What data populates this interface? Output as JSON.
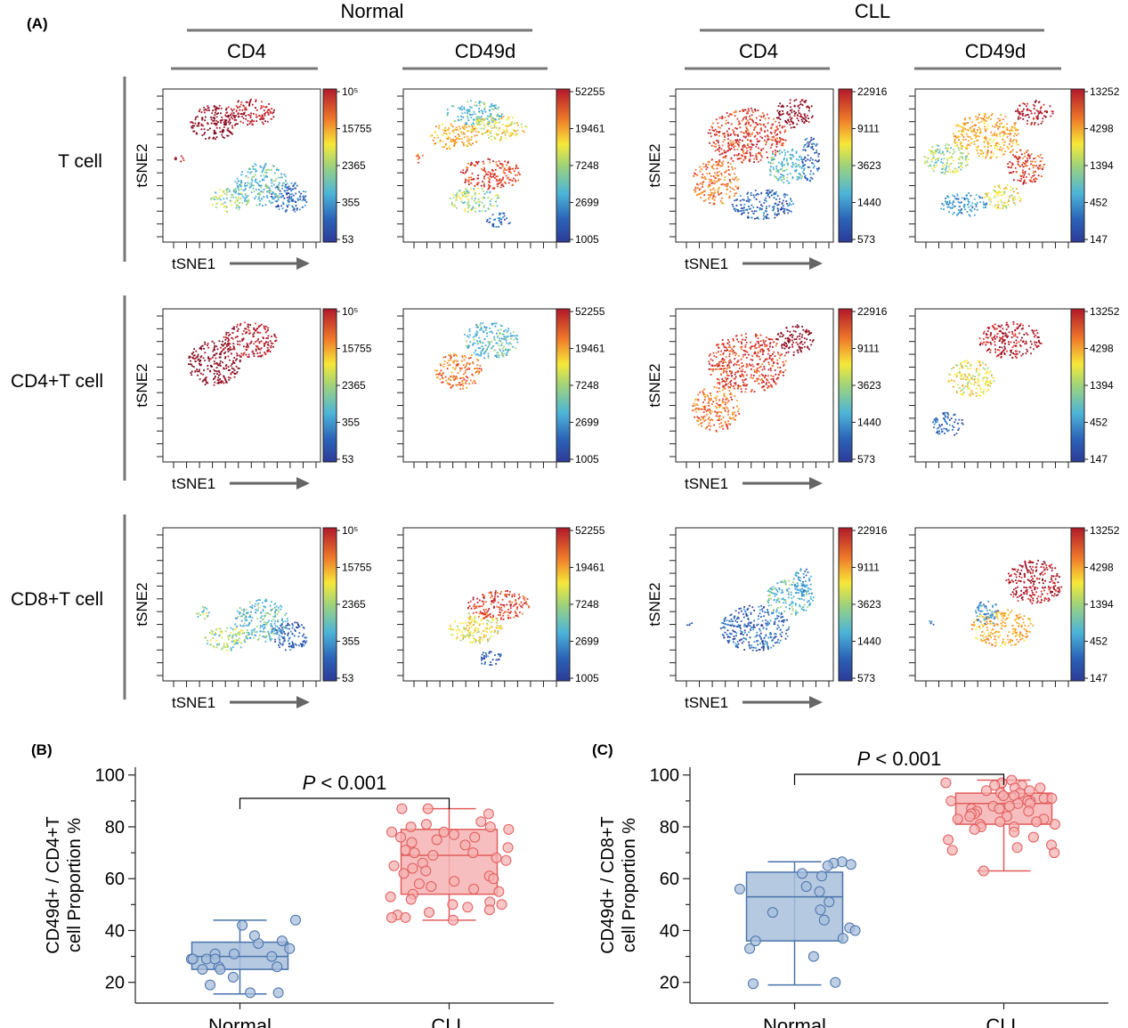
{
  "panel_labels": {
    "a": "(A)",
    "b": "(B)",
    "c": "(C)"
  },
  "groups": {
    "normal": "Normal",
    "cll": "CLL"
  },
  "markers": {
    "cd4": "CD4",
    "cd49d": "CD49d"
  },
  "rows": [
    "T cell",
    "CD4+T cell",
    "CD8+T cell"
  ],
  "axis": {
    "tsne1": "tSNE1",
    "tsne2": "tSNE2"
  },
  "colorbars": {
    "normal_cd4": {
      "ticks": [
        "10⁵",
        "15755",
        "2365",
        "355",
        "53"
      ]
    },
    "normal_cd49d": {
      "ticks": [
        "52255",
        "19461",
        "7248",
        "2699",
        "1005"
      ]
    },
    "cll_cd4": {
      "ticks": [
        "22916",
        "9111",
        "3623",
        "1440",
        "573"
      ]
    },
    "cll_cd49d": {
      "ticks": [
        "13252",
        "4298",
        "1394",
        "452",
        "147"
      ]
    }
  },
  "colors": {
    "normal_fill": "#a8bfdc",
    "normal_stroke": "#4a73aa",
    "cll_fill": "#f5b3b3",
    "cll_stroke": "#e25c5c",
    "bracket": "#000000"
  },
  "chart_data": [
    {
      "type": "box",
      "panel": "B",
      "categories": [
        "Normal",
        "CLL"
      ],
      "ylabel_line1": "CD49d+ / CD4+T",
      "ylabel_line2": "cell Proportion %",
      "ylim": [
        12,
        103
      ],
      "yticks": [
        20,
        40,
        60,
        80,
        100
      ],
      "significance": {
        "prefix": "P",
        "text": " < 0.001"
      },
      "series": [
        {
          "name": "Normal",
          "box": {
            "q1": 25,
            "median": 30,
            "q3": 35.5,
            "min": 15.5,
            "max": 44
          },
          "points": [
            35,
            33,
            31,
            29,
            29,
            30,
            25,
            26,
            26,
            25,
            38,
            36,
            44,
            42,
            29,
            31,
            22,
            16,
            19,
            16,
            29
          ]
        },
        {
          "name": "CLL",
          "box": {
            "q1": 54,
            "median": 69,
            "q3": 79,
            "min": 44,
            "max": 87
          },
          "points": [
            87,
            87,
            85,
            82,
            81,
            80,
            80,
            79,
            78,
            78,
            77,
            76,
            76,
            75,
            74,
            73,
            72,
            71,
            70,
            70,
            69,
            68,
            67,
            66,
            65,
            64,
            63,
            62,
            61,
            60,
            59,
            58,
            57,
            56,
            55,
            54,
            53,
            52,
            51,
            50,
            50,
            49,
            48,
            47,
            46,
            45,
            45,
            44
          ]
        }
      ]
    },
    {
      "type": "box",
      "panel": "C",
      "categories": [
        "Normal",
        "CLL"
      ],
      "ylabel_line1": "CD49d+ / CD8+T",
      "ylabel_line2": "cell Proportion %",
      "ylim": [
        12,
        103
      ],
      "yticks": [
        20,
        40,
        60,
        80,
        100
      ],
      "significance": {
        "prefix": "P",
        "text": " < 0.001"
      },
      "series": [
        {
          "name": "Normal",
          "box": {
            "q1": 36,
            "median": 53,
            "q3": 62.5,
            "min": 19,
            "max": 66.5
          },
          "points": [
            66.5,
            66,
            65.5,
            65,
            62,
            61,
            57,
            56,
            55,
            51,
            48,
            47,
            44,
            41,
            40,
            37,
            36,
            33,
            30,
            20,
            19.5
          ]
        },
        {
          "name": "CLL",
          "box": {
            "q1": 81,
            "median": 89,
            "q3": 93,
            "min": 63,
            "max": 98
          },
          "points": [
            98,
            97,
            97,
            96,
            96,
            95,
            95,
            94,
            94,
            93,
            93,
            92,
            92,
            91,
            91,
            90,
            90,
            90,
            89,
            89,
            88,
            88,
            87,
            87,
            86,
            86,
            85,
            85,
            84,
            84,
            83,
            83,
            82,
            82,
            81,
            81,
            80,
            80,
            79,
            78,
            76,
            75,
            73,
            72,
            71,
            70,
            63
          ]
        }
      ]
    }
  ]
}
